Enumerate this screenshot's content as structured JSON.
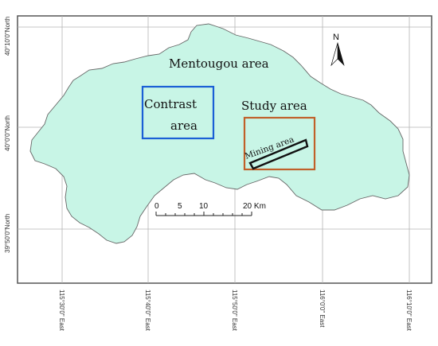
{
  "map": {
    "region_label": "Mentougou area",
    "contrast_label_line1": "Contrast",
    "contrast_label_line2": "area",
    "study_label": "Study area",
    "mining_label": "Mining area",
    "north_label": "N",
    "scale_ticks": [
      "0",
      "5",
      "10",
      "20 Km"
    ],
    "lat_labels": [
      "40°10'0\"North",
      "40°0'0\"North",
      "39°50'0\"North"
    ],
    "lon_labels": [
      "115°30'0\" East",
      "115°40'0\" East",
      "115°50'0\" East",
      "116°0'0\" East",
      "116°10'0\" East"
    ]
  },
  "colors": {
    "land_fill": "#c8f5e6",
    "contrast_box": "#1a5fd6",
    "study_box": "#c0602a",
    "grid": "#b4b4b4"
  }
}
